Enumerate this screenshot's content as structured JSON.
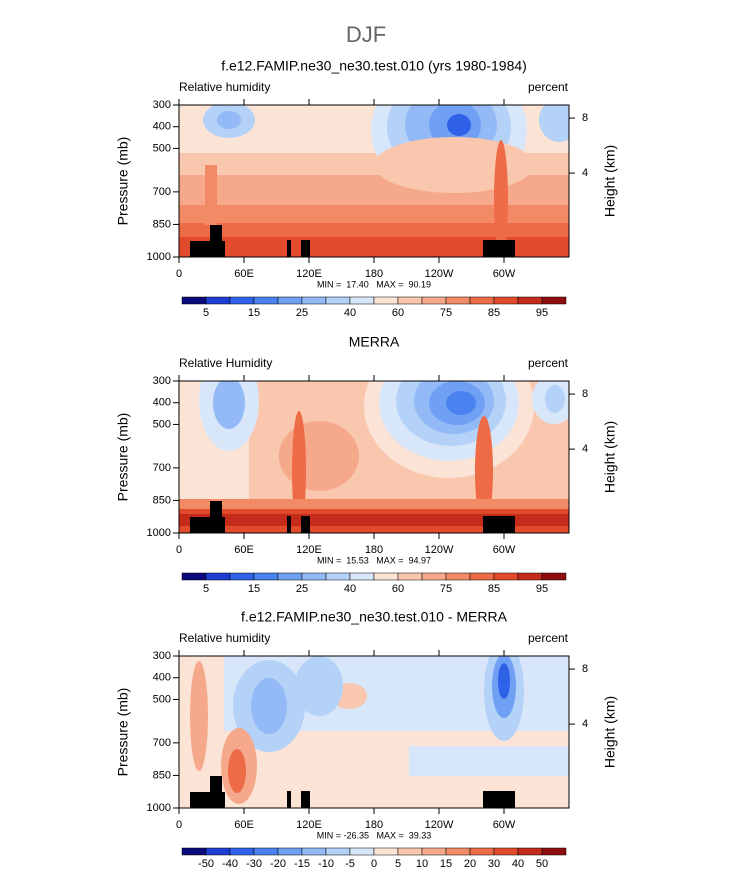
{
  "figure_title": "DJF",
  "chart_data": [
    {
      "type": "contour",
      "title": "f.e12.FAMIP.ne30_ne30.test.010 (yrs 1980-1984)",
      "left_label": "Relative humidity",
      "right_label": "percent",
      "ylabel": "Pressure (mb)",
      "y2label": "Height (km)",
      "xlim": [
        0,
        360
      ],
      "xticks": [
        0,
        {
          "value": 60,
          "label": "60E"
        },
        {
          "value": 120,
          "label": "120E"
        },
        180,
        {
          "value": 240,
          "label": "120W"
        },
        {
          "value": 300,
          "label": "60W"
        }
      ],
      "ylim": [
        1000,
        300
      ],
      "yticks": [
        300,
        400,
        500,
        700,
        850,
        1000
      ],
      "y2lim": [
        -2.1,
        8.95
      ],
      "y2ticks": [
        4,
        8
      ],
      "stats": "MIN =  17.40   MAX =  90.19",
      "colorbar_levels": [
        5,
        10,
        15,
        20,
        25,
        30,
        40,
        50,
        60,
        70,
        75,
        80,
        85,
        90,
        95
      ],
      "colorbar_ticks": [
        5,
        15,
        25,
        40,
        60,
        75,
        85,
        95
      ],
      "colors": [
        "#0a0a7a",
        "#1c3fd2",
        "#2f62e8",
        "#4a83ef",
        "#6fa0f3",
        "#93baf6",
        "#b4d1f8",
        "#d8e6fa",
        "#fbe3d6",
        "#f9c7ae",
        "#f6a98a",
        "#f38a66",
        "#ee6b48",
        "#e24a2c",
        "#c42b1a",
        "#8e0e0e"
      ]
    },
    {
      "type": "contour",
      "title": "MERRA",
      "left_label": "Relative Humidity",
      "right_label": "percent",
      "ylabel": "Pressure (mb)",
      "y2label": "Height (km)",
      "xlim": [
        0,
        360
      ],
      "xticks": [
        0,
        {
          "value": 60,
          "label": "60E"
        },
        {
          "value": 120,
          "label": "120E"
        },
        180,
        {
          "value": 240,
          "label": "120W"
        },
        {
          "value": 300,
          "label": "60W"
        }
      ],
      "ylim": [
        1000,
        300
      ],
      "yticks": [
        300,
        400,
        500,
        700,
        850,
        1000
      ],
      "y2lim": [
        -2.1,
        8.95
      ],
      "y2ticks": [
        4,
        8
      ],
      "stats": "MIN =  15.53   MAX =  94.97",
      "colorbar_levels": [
        5,
        10,
        15,
        20,
        25,
        30,
        40,
        50,
        60,
        70,
        75,
        80,
        85,
        90,
        95
      ],
      "colorbar_ticks": [
        5,
        15,
        25,
        40,
        60,
        75,
        85,
        95
      ],
      "colors": [
        "#0a0a7a",
        "#1c3fd2",
        "#2f62e8",
        "#4a83ef",
        "#6fa0f3",
        "#93baf6",
        "#b4d1f8",
        "#d8e6fa",
        "#fbe3d6",
        "#f9c7ae",
        "#f6a98a",
        "#f38a66",
        "#ee6b48",
        "#e24a2c",
        "#c42b1a",
        "#8e0e0e"
      ]
    },
    {
      "type": "contour",
      "title": "f.e12.FAMIP.ne30_ne30.test.010 - MERRA",
      "left_label": "Relative humidity",
      "right_label": "percent",
      "ylabel": "Pressure (mb)",
      "y2label": "Height (km)",
      "xlim": [
        0,
        360
      ],
      "xticks": [
        0,
        {
          "value": 60,
          "label": "60E"
        },
        {
          "value": 120,
          "label": "120E"
        },
        180,
        {
          "value": 240,
          "label": "120W"
        },
        {
          "value": 300,
          "label": "60W"
        }
      ],
      "ylim": [
        1000,
        300
      ],
      "yticks": [
        300,
        400,
        500,
        700,
        850,
        1000
      ],
      "y2lim": [
        -2.1,
        8.95
      ],
      "y2ticks": [
        4,
        8
      ],
      "stats": "MIN = -26.35   MAX =  39.33",
      "colorbar_levels": [
        -50,
        -40,
        -30,
        -20,
        -15,
        -10,
        -5,
        0,
        5,
        10,
        15,
        20,
        30,
        40,
        50
      ],
      "colorbar_ticks": [
        -50,
        -40,
        -30,
        -20,
        -15,
        -10,
        -5,
        0,
        5,
        10,
        15,
        20,
        30,
        40,
        50
      ],
      "colors": [
        "#0a0a7a",
        "#1c3fd2",
        "#2f62e8",
        "#4a83ef",
        "#6fa0f3",
        "#93baf6",
        "#b4d1f8",
        "#d8e6fa",
        "#fbe3d6",
        "#f9c7ae",
        "#f6a98a",
        "#f38a66",
        "#ee6b48",
        "#e24a2c",
        "#c42b1a",
        "#8e0e0e"
      ]
    }
  ]
}
